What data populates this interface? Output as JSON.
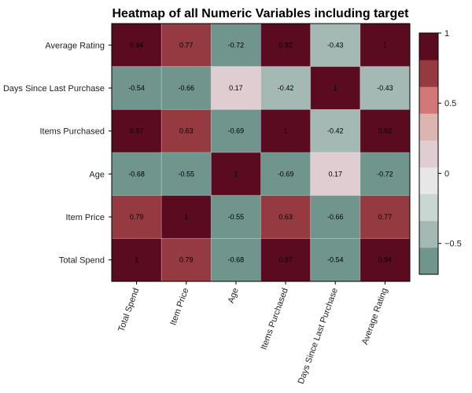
{
  "chart_data": {
    "type": "heatmap",
    "title": "Heatmap of all Numeric Variables including target",
    "x_categories": [
      "Total Spend",
      "Item Price",
      "Age",
      "Items Purchased",
      "Days Since Last Purchase",
      "Average Rating"
    ],
    "y_categories": [
      "Average Rating",
      "Days Since Last Purchase",
      "Items Purchased",
      "Age",
      "Item Price",
      "Total Spend"
    ],
    "values": [
      [
        0.94,
        0.77,
        -0.72,
        0.92,
        -0.43,
        1
      ],
      [
        -0.54,
        -0.66,
        0.17,
        -0.42,
        1,
        -0.43
      ],
      [
        0.97,
        0.63,
        -0.69,
        1,
        -0.42,
        0.92
      ],
      [
        -0.68,
        -0.55,
        1,
        -0.69,
        0.17,
        -0.72
      ],
      [
        0.79,
        1,
        -0.55,
        0.63,
        -0.66,
        0.77
      ],
      [
        1,
        0.79,
        -0.68,
        0.97,
        -0.54,
        0.94
      ]
    ],
    "labels": [
      [
        "0.94",
        "0.77",
        "-0.72",
        "0.92",
        "-0.43",
        "1"
      ],
      [
        "-0.54",
        "-0.66",
        "0.17",
        "-0.42",
        "1",
        "-0.43"
      ],
      [
        "0.97",
        "0.63",
        "-0.69",
        "1",
        "-0.42",
        "0.92"
      ],
      [
        "-0.68",
        "-0.55",
        "1",
        "-0.69",
        "0.17",
        "-0.72"
      ],
      [
        "0.79",
        "1",
        "-0.55",
        "0.63",
        "-0.66",
        "0.77"
      ],
      [
        "1",
        "0.79",
        "-0.68",
        "0.97",
        "-0.54",
        "0.94"
      ]
    ],
    "colorscale": {
      "range": [
        -0.72,
        1
      ],
      "bins": [
        {
          "from": -0.72,
          "to": -0.529,
          "color": "#6f958d"
        },
        {
          "from": -0.529,
          "to": -0.338,
          "color": "#a5b9b4"
        },
        {
          "from": -0.338,
          "to": -0.147,
          "color": "#c9d6d2"
        },
        {
          "from": -0.147,
          "to": 0.044,
          "color": "#e7e7e7"
        },
        {
          "from": 0.044,
          "to": 0.236,
          "color": "#dfcdd1"
        },
        {
          "from": 0.236,
          "to": 0.427,
          "color": "#dcb5b1"
        },
        {
          "from": 0.427,
          "to": 0.618,
          "color": "#d27876"
        },
        {
          "from": 0.618,
          "to": 0.809,
          "color": "#943a40"
        },
        {
          "from": 0.809,
          "to": 1.0,
          "color": "#5a0b1f"
        }
      ],
      "ticks": [
        {
          "value": 1,
          "label": "1"
        },
        {
          "value": 0.5,
          "label": "0.5"
        },
        {
          "value": 0,
          "label": "0"
        },
        {
          "value": -0.5,
          "label": "−0.5"
        }
      ]
    }
  }
}
